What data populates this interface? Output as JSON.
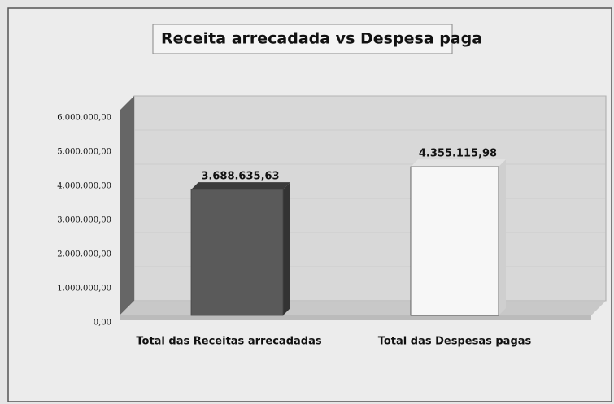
{
  "chart_data": {
    "type": "bar",
    "title": "Receita arrecadada  vs  Despesa paga",
    "categories": [
      "Total das Receitas arrecadadas",
      "Total das Despesas pagas"
    ],
    "values": [
      3688635.63,
      4355115.98
    ],
    "value_labels": [
      "3.688.635,63",
      "4.355.115,98"
    ],
    "colors": [
      "#5a5a5a",
      "#f7f7f7"
    ],
    "ylim": [
      0,
      6000000
    ],
    "yticks": [
      {
        "value": 0,
        "label": "0,00"
      },
      {
        "value": 1000000,
        "label": "1.000.000,00"
      },
      {
        "value": 2000000,
        "label": "2.000.000,00"
      },
      {
        "value": 3000000,
        "label": "3.000.000,00"
      },
      {
        "value": 4000000,
        "label": "4.000.000,00"
      },
      {
        "value": 5000000,
        "label": "5.000.000,00"
      },
      {
        "value": 6000000,
        "label": "6.000.000,00"
      }
    ]
  }
}
